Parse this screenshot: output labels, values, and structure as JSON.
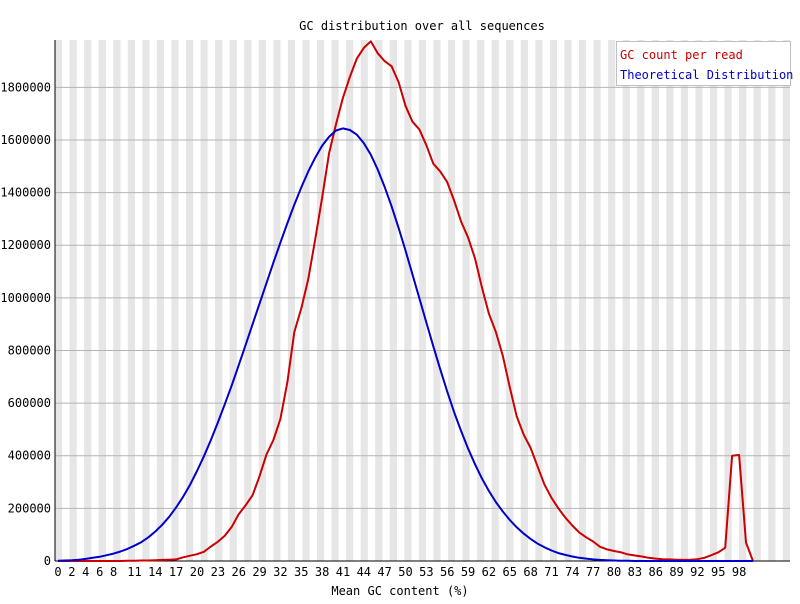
{
  "chart_data": {
    "type": "line",
    "title": "GC distribution over all sequences",
    "xlabel": "Mean GC content (%)",
    "ylabel": "",
    "xlim": [
      0,
      100
    ],
    "ylim": [
      0,
      1980000
    ],
    "x_ticks": [
      0,
      2,
      4,
      6,
      8,
      11,
      14,
      17,
      20,
      23,
      26,
      29,
      32,
      35,
      38,
      41,
      44,
      47,
      50,
      53,
      56,
      59,
      62,
      65,
      68,
      71,
      74,
      77,
      80,
      83,
      86,
      89,
      92,
      95,
      98
    ],
    "y_ticks": [
      0,
      200000,
      400000,
      600000,
      800000,
      1000000,
      1200000,
      1400000,
      1600000,
      1800000
    ],
    "grid": true,
    "legend_position": "top-right",
    "x": [
      0,
      1,
      2,
      3,
      4,
      5,
      6,
      7,
      8,
      9,
      10,
      11,
      12,
      13,
      14,
      15,
      16,
      17,
      18,
      19,
      20,
      21,
      22,
      23,
      24,
      25,
      26,
      27,
      28,
      29,
      30,
      31,
      32,
      33,
      34,
      35,
      36,
      37,
      38,
      39,
      40,
      41,
      42,
      43,
      44,
      45,
      46,
      47,
      48,
      49,
      50,
      51,
      52,
      53,
      54,
      55,
      56,
      57,
      58,
      59,
      60,
      61,
      62,
      63,
      64,
      65,
      66,
      67,
      68,
      69,
      70,
      71,
      72,
      73,
      74,
      75,
      76,
      77,
      78,
      79,
      80,
      81,
      82,
      83,
      84,
      85,
      86,
      87,
      88,
      89,
      90,
      91,
      92,
      93,
      94,
      95,
      96,
      97,
      98,
      99,
      100
    ],
    "series": [
      {
        "name": "GC count per read",
        "color": "#cc0000",
        "values": [
          0,
          0,
          0,
          0,
          0,
          0,
          0,
          0,
          0,
          0,
          1000,
          1000,
          2000,
          2000,
          3000,
          4000,
          5000,
          6000,
          14000,
          20000,
          26000,
          35000,
          55000,
          73000,
          96000,
          130000,
          178000,
          212000,
          250000,
          322000,
          405000,
          460000,
          540000,
          680000,
          870000,
          960000,
          1070000,
          1220000,
          1380000,
          1550000,
          1660000,
          1760000,
          1840000,
          1910000,
          1950000,
          1975000,
          1930000,
          1900000,
          1880000,
          1820000,
          1730000,
          1670000,
          1640000,
          1580000,
          1510000,
          1480000,
          1440000,
          1370000,
          1290000,
          1230000,
          1150000,
          1040000,
          940000,
          870000,
          780000,
          660000,
          550000,
          480000,
          430000,
          360000,
          290000,
          240000,
          200000,
          165000,
          135000,
          108000,
          90000,
          74000,
          54000,
          44000,
          38000,
          33000,
          25000,
          21000,
          17000,
          12000,
          9000,
          7000,
          6000,
          5000,
          4000,
          5000,
          7000,
          12000,
          22000,
          33000,
          50000,
          400000,
          403000,
          70000,
          0
        ]
      },
      {
        "name": "Theoretical Distribution",
        "color": "#0000cc",
        "values": [
          1000,
          2000,
          3000,
          5000,
          8000,
          12000,
          16000,
          22000,
          28000,
          36000,
          46000,
          58000,
          72000,
          90000,
          112000,
          138000,
          168000,
          204000,
          244000,
          290000,
          342000,
          398000,
          460000,
          526000,
          596000,
          668000,
          744000,
          822000,
          900000,
          978000,
          1056000,
          1134000,
          1210000,
          1284000,
          1354000,
          1420000,
          1480000,
          1532000,
          1578000,
          1612000,
          1636000,
          1644000,
          1638000,
          1620000,
          1588000,
          1544000,
          1488000,
          1422000,
          1348000,
          1266000,
          1180000,
          1090000,
          998000,
          906000,
          816000,
          728000,
          644000,
          566000,
          494000,
          428000,
          368000,
          314000,
          266000,
          224000,
          188000,
          156000,
          128000,
          104000,
          84000,
          66000,
          52000,
          40000,
          30000,
          23000,
          17000,
          12000,
          9000,
          6000,
          4000,
          3000,
          2000,
          1000,
          1000,
          0,
          0,
          0,
          0,
          0,
          0,
          0,
          0,
          0,
          0,
          0,
          0,
          0,
          0,
          0,
          0,
          0,
          0
        ]
      }
    ]
  }
}
